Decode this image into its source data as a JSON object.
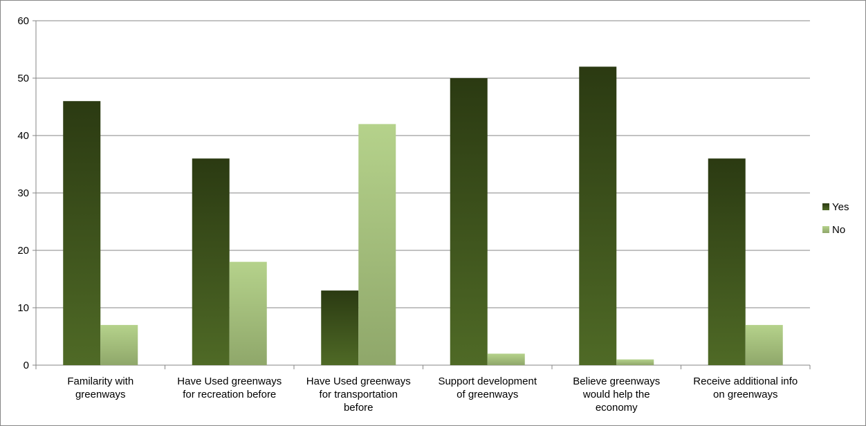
{
  "chart_data": {
    "type": "bar",
    "title": "",
    "xlabel": "",
    "ylabel": "",
    "ylim": [
      0,
      60
    ],
    "yticks": [
      0,
      10,
      20,
      30,
      40,
      50,
      60
    ],
    "grid": true,
    "legend_position": "right",
    "categories": [
      "Familarity with greenways",
      "Have Used greenways for recreation before",
      "Have Used greenways for transportation before",
      "Support development of greenways",
      "Believe greenways would help the economy",
      "Receive additional info on greenways"
    ],
    "category_lines": [
      [
        "Familarity with",
        "greenways"
      ],
      [
        "Have Used greenways",
        "for recreation before"
      ],
      [
        "Have Used greenways",
        "for transportation",
        "before"
      ],
      [
        "Support development",
        "of greenways"
      ],
      [
        "Believe greenways",
        "would help the",
        "economy"
      ],
      [
        "Receive additional info",
        "on greenways"
      ]
    ],
    "series": [
      {
        "name": "Yes",
        "values": [
          46,
          36,
          13,
          50,
          52,
          36
        ],
        "color_top": "#2b3a12",
        "color_bottom": "#4f6a26"
      },
      {
        "name": "No",
        "values": [
          7,
          18,
          42,
          2,
          1,
          7
        ],
        "color_top": "#b5d28b",
        "color_bottom": "#8fa76a"
      }
    ]
  }
}
